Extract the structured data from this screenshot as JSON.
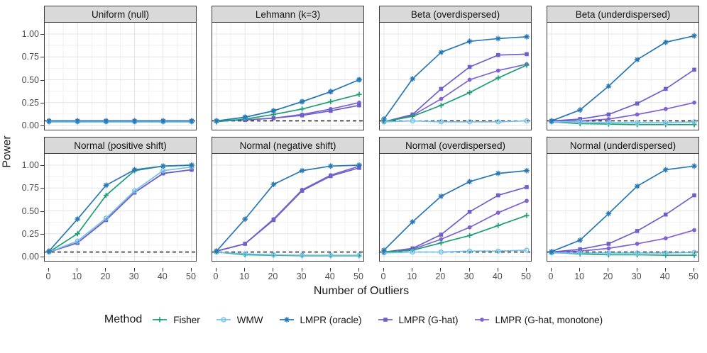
{
  "chart_data": {
    "type": "line",
    "title": "",
    "xlabel": "Number of Outliers",
    "ylabel": "Power",
    "legend_title": "Method",
    "legend_position": "bottom",
    "grid": "on",
    "ylim": [
      0,
      1
    ],
    "yticks": [
      "1.00",
      "0.75",
      "0.50",
      "0.25",
      "0.00"
    ],
    "ytick_values": [
      1.0,
      0.75,
      0.5,
      0.25,
      0.0
    ],
    "xticks": [
      "0",
      "10",
      "20",
      "30",
      "40",
      "50"
    ],
    "x": [
      0,
      10,
      20,
      30,
      40,
      50
    ],
    "significance_line": 0.05,
    "methods": [
      {
        "id": "fisher",
        "label": "Fisher",
        "color": "#1B9E77",
        "marker": "plus"
      },
      {
        "id": "wmw",
        "label": "WMW",
        "color": "#74C3E8",
        "marker": "circle-open"
      },
      {
        "id": "oracle",
        "label": "LMPR (oracle)",
        "color": "#2878B5",
        "marker": "asterisk"
      },
      {
        "id": "ghat",
        "label": "LMPR (G-hat)",
        "color": "#6E60C8",
        "marker": "square"
      },
      {
        "id": "monotone",
        "label": "LMPR (G-hat, monotone)",
        "color": "#7E64D2",
        "marker": "circle"
      }
    ],
    "draw_order": [
      "monotone",
      "ghat",
      "fisher",
      "wmw",
      "oracle"
    ],
    "facets": [
      {
        "title": "Uniform (null)",
        "series": {
          "fisher": [
            0.04,
            0.04,
            0.04,
            0.04,
            0.04,
            0.04
          ],
          "wmw": [
            0.04,
            0.04,
            0.04,
            0.04,
            0.04,
            0.04
          ],
          "oracle": [
            0.05,
            0.05,
            0.05,
            0.05,
            0.05,
            0.05
          ],
          "ghat": [
            0.05,
            0.05,
            0.05,
            0.05,
            0.05,
            0.05
          ],
          "monotone": [
            0.05,
            0.05,
            0.05,
            0.05,
            0.05,
            0.05
          ]
        }
      },
      {
        "title": "Lehmann (k=3)",
        "series": {
          "fisher": [
            0.04,
            0.07,
            0.12,
            0.18,
            0.26,
            0.34
          ],
          "wmw": [
            0.05,
            0.09,
            0.16,
            0.26,
            0.37,
            0.5
          ],
          "oracle": [
            0.05,
            0.09,
            0.16,
            0.26,
            0.37,
            0.5
          ],
          "ghat": [
            0.05,
            0.06,
            0.08,
            0.11,
            0.16,
            0.22
          ],
          "monotone": [
            0.05,
            0.06,
            0.08,
            0.12,
            0.18,
            0.25
          ]
        }
      },
      {
        "title": "Beta (overdispersed)",
        "series": {
          "fisher": [
            0.04,
            0.1,
            0.22,
            0.36,
            0.52,
            0.66
          ],
          "wmw": [
            0.04,
            0.05,
            0.04,
            0.04,
            0.04,
            0.05
          ],
          "oracle": [
            0.07,
            0.51,
            0.8,
            0.92,
            0.95,
            0.97
          ],
          "ghat": [
            0.04,
            0.12,
            0.4,
            0.64,
            0.77,
            0.78
          ],
          "monotone": [
            0.04,
            0.11,
            0.29,
            0.5,
            0.6,
            0.67
          ]
        }
      },
      {
        "title": "Beta (underdispersed)",
        "series": {
          "fisher": [
            0.04,
            0.02,
            0.015,
            0.01,
            0.01,
            0.01
          ],
          "wmw": [
            0.04,
            0.04,
            0.03,
            0.03,
            0.03,
            0.04
          ],
          "oracle": [
            0.05,
            0.17,
            0.43,
            0.72,
            0.91,
            0.98
          ],
          "ghat": [
            0.05,
            0.07,
            0.12,
            0.24,
            0.4,
            0.61
          ],
          "monotone": [
            0.05,
            0.05,
            0.07,
            0.12,
            0.18,
            0.25
          ]
        }
      },
      {
        "title": "Normal (positive shift)",
        "series": {
          "fisher": [
            0.05,
            0.25,
            0.67,
            0.94,
            0.99,
            1.0
          ],
          "wmw": [
            0.05,
            0.17,
            0.42,
            0.72,
            0.94,
            0.98
          ],
          "oracle": [
            0.06,
            0.41,
            0.78,
            0.95,
            0.99,
            1.0
          ],
          "ghat": [
            0.05,
            0.15,
            0.4,
            0.7,
            0.91,
            0.95
          ],
          "monotone": [
            0.05,
            0.15,
            0.4,
            0.7,
            0.91,
            0.95
          ]
        }
      },
      {
        "title": "Normal (negative shift)",
        "series": {
          "fisher": [
            0.05,
            0.02,
            0.015,
            0.01,
            0.01,
            0.01
          ],
          "wmw": [
            0.05,
            0.03,
            0.02,
            0.015,
            0.015,
            0.015
          ],
          "oracle": [
            0.06,
            0.41,
            0.79,
            0.94,
            0.99,
            1.0
          ],
          "ghat": [
            0.06,
            0.14,
            0.4,
            0.72,
            0.88,
            0.97
          ],
          "monotone": [
            0.06,
            0.14,
            0.41,
            0.73,
            0.89,
            0.99
          ]
        }
      },
      {
        "title": "Normal (overdispersed)",
        "series": {
          "fisher": [
            0.05,
            0.07,
            0.15,
            0.23,
            0.34,
            0.45
          ],
          "wmw": [
            0.04,
            0.05,
            0.05,
            0.06,
            0.06,
            0.07
          ],
          "oracle": [
            0.07,
            0.38,
            0.66,
            0.82,
            0.91,
            0.94
          ],
          "ghat": [
            0.05,
            0.09,
            0.24,
            0.49,
            0.67,
            0.76
          ],
          "monotone": [
            0.05,
            0.08,
            0.19,
            0.32,
            0.48,
            0.61
          ]
        }
      },
      {
        "title": "Normal (underdispersed)",
        "series": {
          "fisher": [
            0.045,
            0.03,
            0.02,
            0.02,
            0.015,
            0.015
          ],
          "wmw": [
            0.04,
            0.04,
            0.04,
            0.04,
            0.04,
            0.045
          ],
          "oracle": [
            0.055,
            0.18,
            0.47,
            0.77,
            0.95,
            0.99
          ],
          "ghat": [
            0.05,
            0.08,
            0.14,
            0.28,
            0.46,
            0.67
          ],
          "monotone": [
            0.05,
            0.06,
            0.09,
            0.14,
            0.2,
            0.29
          ]
        }
      }
    ],
    "colors": {
      "strip_background": "#d9d9d9",
      "panel_border": "#3c3c3c",
      "grid_major": "#e4e4e4",
      "grid_minor": "#f1f1f1",
      "significance_line": "#000000"
    }
  }
}
